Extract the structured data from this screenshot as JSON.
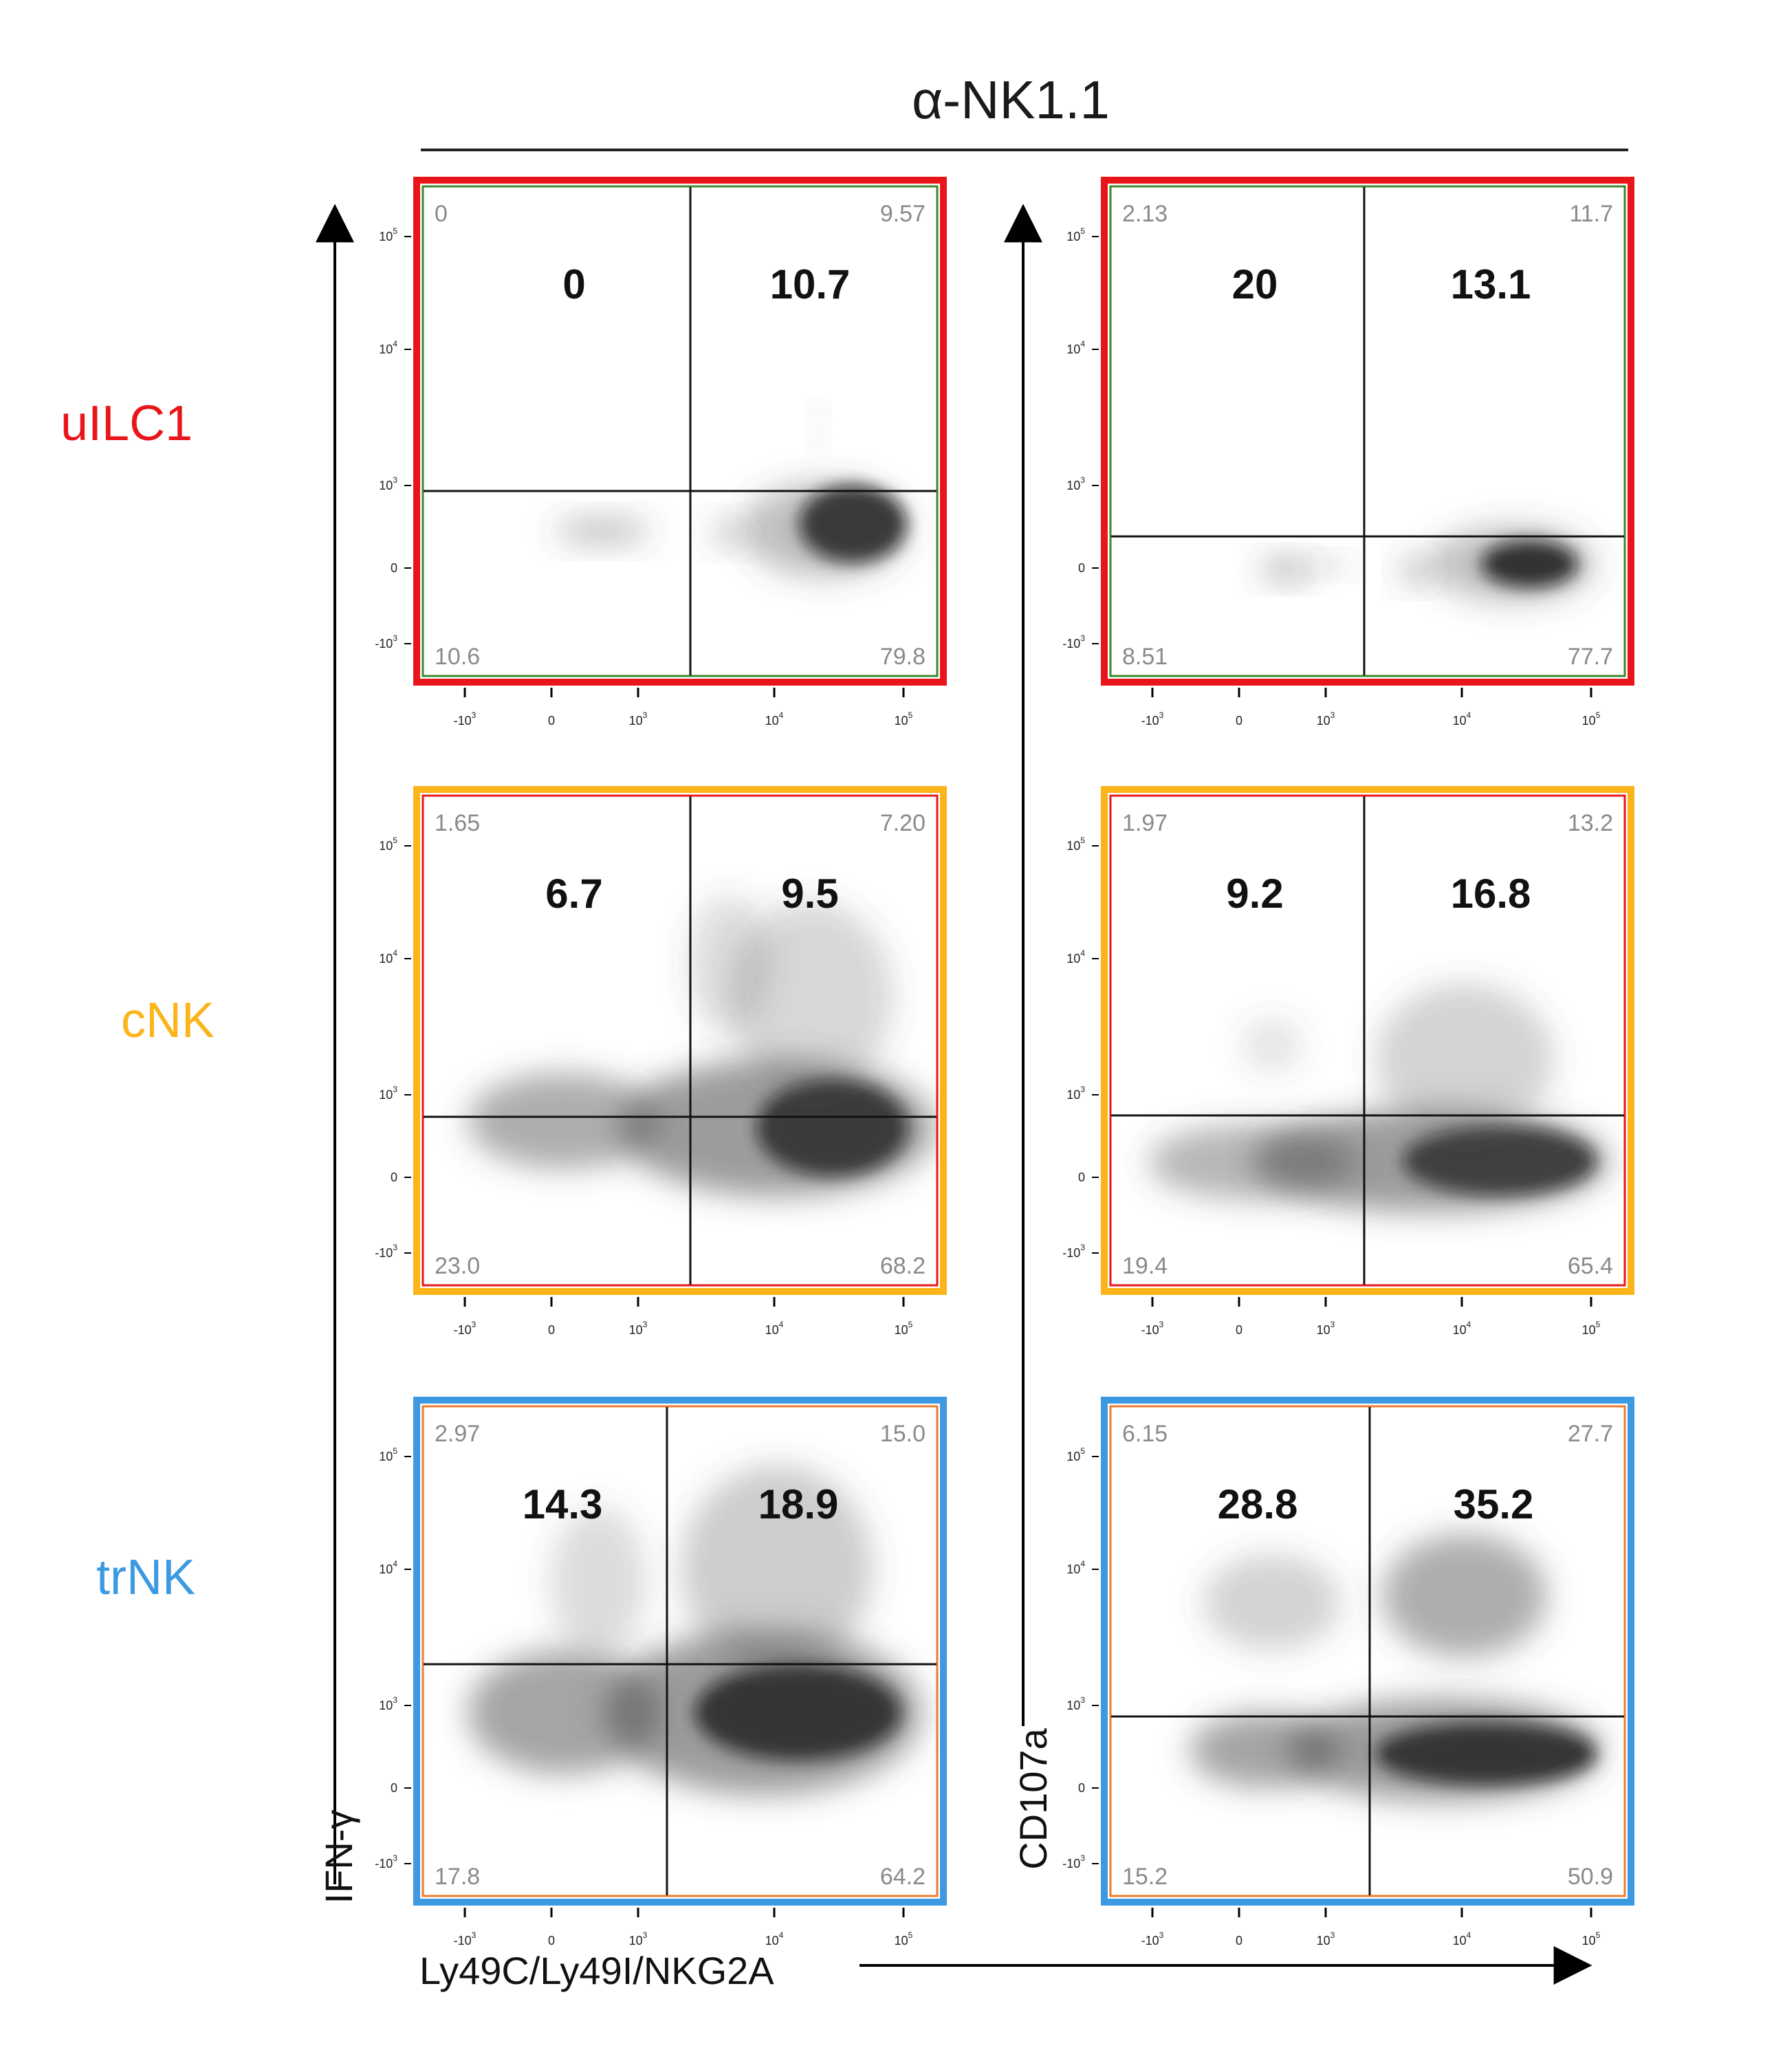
{
  "title": "α-NK1.1",
  "row_labels": [
    {
      "text": "uILC1",
      "color": "#e8161b"
    },
    {
      "text": "cNK",
      "color": "#fbb419"
    },
    {
      "text": "trNK",
      "color": "#3b9ae1"
    }
  ],
  "axis_labels": {
    "x": "Ly49C/Ly49I/NKG2A",
    "y_left": "IFN-γ",
    "y_right": "CD107a"
  },
  "tick_labels": {
    "x": [
      {
        "base": "-10",
        "exp": "3"
      },
      {
        "base": "0",
        "exp": ""
      },
      {
        "base": "10",
        "exp": "3"
      },
      {
        "base": "10",
        "exp": "4"
      },
      {
        "base": "10",
        "exp": "5"
      }
    ],
    "y": [
      {
        "base": "10",
        "exp": "5"
      },
      {
        "base": "10",
        "exp": "4"
      },
      {
        "base": "10",
        "exp": "3"
      },
      {
        "base": "0",
        "exp": ""
      },
      {
        "base": "-10",
        "exp": "3"
      }
    ]
  },
  "colors": {
    "uILC1_frame": "#e8161b",
    "cNK_frame": "#fbb419",
    "trNK_frame": "#3b9ae1",
    "uILC1_inner": "#3a8a2a",
    "cNK_inner": "#e8161b",
    "trNK_inner": "#f07a2a",
    "quadrant_line": "#111111"
  },
  "chart_data": {
    "type": "scatter",
    "subtype": "flow-cytometry-density-quadrants",
    "title": "α-NK1.1",
    "xlabel": "Ly49C/Ly49I/NKG2A",
    "ylabel": [
      "IFN-γ",
      "CD107a"
    ],
    "x_ticks": [
      "-10^3",
      "0",
      "10^3",
      "10^4",
      "10^5"
    ],
    "y_ticks": [
      "-10^3",
      "0",
      "10^3",
      "10^4",
      "10^5"
    ],
    "panels": [
      {
        "row": "uILC1",
        "marker": "IFN-γ",
        "big_left": "0",
        "big_right": "10.7",
        "q_ul": "0",
        "q_ur": "9.57",
        "q_ll": "10.6",
        "q_lr": "79.8"
      },
      {
        "row": "uILC1",
        "marker": "CD107a",
        "big_left": "20",
        "big_right": "13.1",
        "q_ul": "2.13",
        "q_ur": "11.7",
        "q_ll": "8.51",
        "q_lr": "77.7"
      },
      {
        "row": "cNK",
        "marker": "IFN-γ",
        "big_left": "6.7",
        "big_right": "9.5",
        "q_ul": "1.65",
        "q_ur": "7.20",
        "q_ll": "23.0",
        "q_lr": "68.2"
      },
      {
        "row": "cNK",
        "marker": "CD107a",
        "big_left": "9.2",
        "big_right": "16.8",
        "q_ul": "1.97",
        "q_ur": "13.2",
        "q_ll": "19.4",
        "q_lr": "65.4"
      },
      {
        "row": "trNK",
        "marker": "IFN-γ",
        "big_left": "14.3",
        "big_right": "18.9",
        "q_ul": "2.97",
        "q_ur": "15.0",
        "q_ll": "17.8",
        "q_lr": "64.2"
      },
      {
        "row": "trNK",
        "marker": "CD107a",
        "big_left": "28.8",
        "big_right": "35.2",
        "q_ul": "6.15",
        "q_ur": "27.7",
        "q_ll": "15.2",
        "q_lr": "50.9"
      }
    ]
  }
}
